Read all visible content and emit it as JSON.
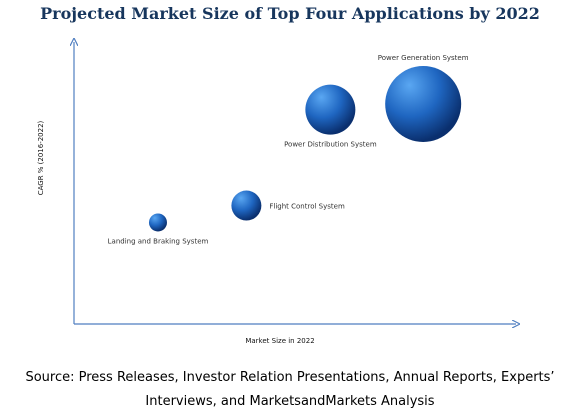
{
  "chart_data": {
    "type": "scatter",
    "title": "Projected Market Size of Top Four Applications by 2022",
    "xlabel": "Market Size in 2022",
    "ylabel": "CAGR % (2016-2022)",
    "xlim": [
      0,
      100
    ],
    "ylim": [
      0,
      100
    ],
    "grid": false,
    "series": [
      {
        "name": "Landing and Braking System",
        "x": 19,
        "y": 36,
        "size": 9
      },
      {
        "name": "Flight Control System",
        "x": 39,
        "y": 42,
        "size": 15
      },
      {
        "name": "Power Distribution System",
        "x": 58,
        "y": 76,
        "size": 25
      },
      {
        "name": "Power Generation System",
        "x": 79,
        "y": 78,
        "size": 38
      }
    ]
  },
  "source": {
    "line1": "Source: Press Releases, Investor Relation Presentations, Annual Reports, Experts’",
    "line2": "Interviews, and MarketsandMarkets Analysis"
  },
  "colors": {
    "axis": "#4f7ec0",
    "title": "#17365d",
    "bubble_light": "#5aa7f2",
    "bubble_mid": "#1f66c1",
    "bubble_dark": "#0a2f6e"
  }
}
